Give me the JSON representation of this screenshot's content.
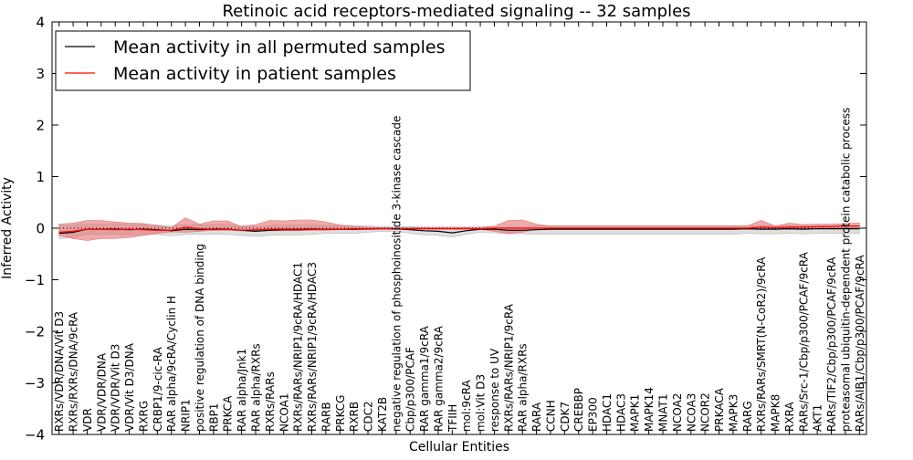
{
  "chart_data": {
    "type": "line",
    "title": "Retinoic acid receptors-mediated signaling -- 32 samples",
    "xlabel": "Cellular Entities",
    "ylabel": "Inferred Activity",
    "ylim": [
      -4,
      4
    ],
    "yticks": [
      -4,
      -3,
      -2,
      -1,
      0,
      1,
      2,
      3,
      4
    ],
    "yticklabels": [
      "−4",
      "−3",
      "−2",
      "−1",
      "0",
      "1",
      "2",
      "3",
      "4"
    ],
    "legend_position": "top-left",
    "categories": [
      "RXRs/VDR/DNA/Vit D3",
      "RXRs/RXRs/DNA/9cRA",
      "VDR",
      "VDR/VDR/DNA",
      "VDR/VDR/Vit D3",
      "VDR/Vit D3/DNA",
      "RXRG",
      "CRBP1/9-cic-RA",
      "RAR alpha/9cRA/Cyclin H",
      "NRIP1",
      "positive regulation of DNA binding",
      "RBP1",
      "PRKCA",
      "RAR alpha/Jnk1",
      "RAR alpha/RXRs",
      "RXRs/RARs",
      "NCOA1",
      "RXRs/RARs/NRIP1/9cRA/HDAC1",
      "RXRs/RARs/NRIP1/9cRA/HDAC3",
      "RARB",
      "PRKCG",
      "RXRB",
      "CDC2",
      "KAT2B",
      "negative regulation of phosphoinositide 3-kinase cascade",
      "Cbp/p300/PCAF",
      "RAR gamma1/9cRA",
      "RAR gamma2/9cRA",
      "TFIIH",
      "mol:9cRA",
      "mol:Vit D3",
      "response to UV",
      "RXRs/RARs/NRIP1/9cRA",
      "RAR alpha/RXRs",
      "RARA",
      "CCNH",
      "CDK7",
      "CREBBP",
      "EP300",
      "HDAC1",
      "HDAC3",
      "MAPK1",
      "MAPK14",
      "MNAT1",
      "NCOA2",
      "NCOA3",
      "NCOR2",
      "PRKACA",
      "MAPK3",
      "RARG",
      "RXRs/RARs/SMRT(N-CoR2)/9cRA",
      "MAPK8",
      "RXRA",
      "RARs/Src-1/Cbp/p300/PCAF/9cRA",
      "AKT1",
      "RARs/TIF2/Cbp/p300/PCAF/9cRA",
      "proteasomal ubiquitin-dependent protein catabolic process",
      "RARs/AIB1/Cbp/p300/PCAF/9cRA"
    ],
    "series": [
      {
        "name": "Mean activity in all permuted samples",
        "color": "#000000",
        "values": [
          -0.1,
          -0.08,
          -0.02,
          -0.02,
          -0.02,
          -0.03,
          -0.02,
          -0.03,
          -0.05,
          -0.02,
          -0.03,
          -0.02,
          -0.02,
          -0.04,
          -0.06,
          -0.04,
          -0.03,
          -0.03,
          -0.02,
          -0.02,
          -0.02,
          -0.02,
          -0.01,
          -0.01,
          -0.01,
          -0.03,
          -0.05,
          -0.06,
          -0.09,
          -0.05,
          -0.02,
          -0.02,
          -0.04,
          -0.04,
          -0.03,
          -0.02,
          -0.02,
          -0.02,
          -0.02,
          -0.02,
          -0.02,
          -0.02,
          -0.02,
          -0.02,
          -0.02,
          -0.02,
          -0.02,
          -0.02,
          -0.02,
          -0.01,
          -0.02,
          -0.02,
          -0.01,
          -0.02,
          -0.01,
          -0.01,
          -0.01,
          -0.01
        ],
        "band_low": [
          -0.2,
          -0.18,
          -0.12,
          -0.12,
          -0.12,
          -0.13,
          -0.12,
          -0.12,
          -0.15,
          -0.12,
          -0.12,
          -0.12,
          -0.12,
          -0.14,
          -0.16,
          -0.14,
          -0.13,
          -0.13,
          -0.12,
          -0.1,
          -0.1,
          -0.1,
          -0.08,
          -0.06,
          -0.06,
          -0.1,
          -0.13,
          -0.14,
          -0.17,
          -0.12,
          -0.08,
          -0.09,
          -0.11,
          -0.11,
          -0.12,
          -0.12,
          -0.12,
          -0.12,
          -0.12,
          -0.12,
          -0.12,
          -0.12,
          -0.12,
          -0.12,
          -0.12,
          -0.12,
          -0.12,
          -0.12,
          -0.12,
          -0.1,
          -0.11,
          -0.11,
          -0.1,
          -0.11,
          -0.1,
          -0.1,
          -0.1,
          -0.1
        ],
        "band_high": [
          0.04,
          0.06,
          0.08,
          0.08,
          0.08,
          0.07,
          0.07,
          0.06,
          0.04,
          0.07,
          0.06,
          0.07,
          0.07,
          0.05,
          0.03,
          0.05,
          0.06,
          0.06,
          0.06,
          0.05,
          0.05,
          0.04,
          0.04,
          0.03,
          0.03,
          0.03,
          0.02,
          0.01,
          -0.01,
          0.02,
          0.02,
          0.02,
          0.02,
          0.02,
          0.04,
          0.05,
          0.05,
          0.05,
          0.05,
          0.05,
          0.05,
          0.05,
          0.05,
          0.05,
          0.05,
          0.05,
          0.05,
          0.05,
          0.05,
          0.05,
          0.05,
          0.05,
          0.05,
          0.05,
          0.05,
          0.05,
          0.05,
          0.05
        ]
      },
      {
        "name": "Mean activity in patient samples",
        "color": "#ff0000",
        "fill": "#e57373",
        "values": [
          -0.08,
          -0.06,
          -0.02,
          -0.02,
          -0.03,
          -0.02,
          -0.03,
          -0.04,
          -0.04,
          0.02,
          -0.01,
          -0.03,
          -0.02,
          -0.04,
          -0.03,
          -0.02,
          -0.02,
          -0.02,
          -0.01,
          -0.02,
          -0.02,
          -0.01,
          -0.01,
          -0.01,
          -0.01,
          -0.01,
          -0.01,
          -0.01,
          -0.01,
          -0.01,
          -0.01,
          0.0,
          0.0,
          0.0,
          0.0,
          0.0,
          0.0,
          0.0,
          0.0,
          0.0,
          0.0,
          0.0,
          0.0,
          0.0,
          0.0,
          0.0,
          0.0,
          0.0,
          0.0,
          0.0,
          0.02,
          0.01,
          0.02,
          0.02,
          0.03,
          0.03,
          0.04,
          0.04
        ],
        "band_low": [
          -0.14,
          -0.2,
          -0.24,
          -0.2,
          -0.2,
          -0.18,
          -0.14,
          -0.1,
          -0.07,
          -0.08,
          -0.06,
          -0.04,
          -0.04,
          -0.05,
          -0.06,
          -0.05,
          -0.05,
          -0.05,
          -0.04,
          -0.04,
          -0.03,
          -0.03,
          -0.03,
          -0.02,
          -0.02,
          -0.02,
          -0.02,
          -0.02,
          -0.02,
          -0.02,
          -0.02,
          -0.06,
          -0.1,
          -0.08,
          -0.02,
          -0.02,
          -0.02,
          -0.02,
          -0.02,
          -0.02,
          -0.02,
          -0.02,
          -0.02,
          -0.02,
          -0.02,
          -0.02,
          -0.02,
          -0.02,
          -0.02,
          -0.02,
          -0.02,
          -0.02,
          -0.02,
          -0.02,
          -0.01,
          0.0,
          0.0,
          0.0
        ],
        "band_high": [
          0.08,
          0.1,
          0.15,
          0.15,
          0.12,
          0.1,
          0.09,
          0.05,
          0.01,
          0.2,
          0.08,
          0.14,
          0.14,
          0.03,
          0.07,
          0.15,
          0.14,
          0.16,
          0.16,
          0.12,
          0.06,
          0.04,
          0.02,
          0.01,
          0.01,
          0.01,
          0.02,
          0.02,
          0.02,
          0.02,
          0.02,
          0.04,
          0.15,
          0.16,
          0.08,
          0.04,
          0.04,
          0.04,
          0.04,
          0.04,
          0.04,
          0.04,
          0.04,
          0.04,
          0.04,
          0.04,
          0.04,
          0.04,
          0.04,
          0.04,
          0.15,
          0.04,
          0.1,
          0.07,
          0.08,
          0.08,
          0.09,
          0.1
        ]
      }
    ]
  }
}
